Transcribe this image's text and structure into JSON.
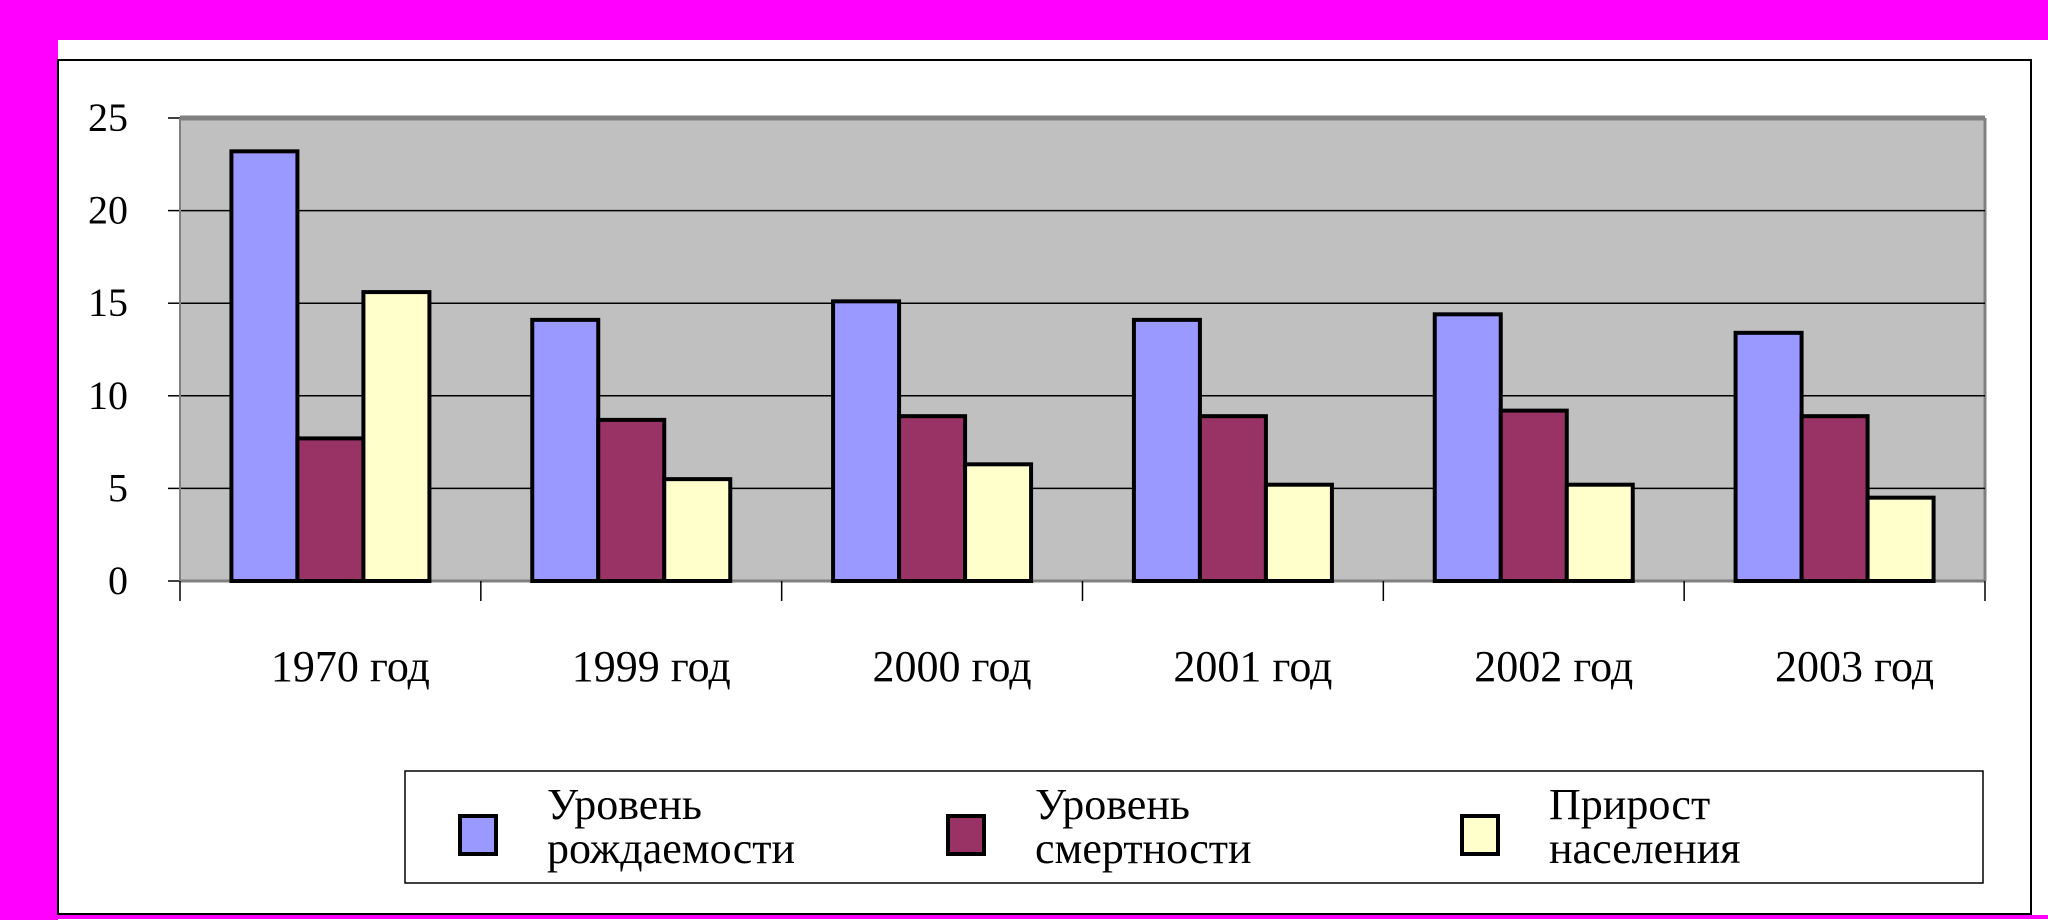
{
  "chart_data": {
    "type": "bar",
    "title": "",
    "xlabel": "",
    "ylabel": "",
    "ylim": [
      0,
      25
    ],
    "yticks": [
      "0",
      "5",
      "10",
      "15",
      "20",
      "25"
    ],
    "grid": true,
    "legend_position": "bottom",
    "categories": [
      "1970 год",
      "1999 год",
      "2000 год",
      "2001 год",
      "2002 год",
      "2003 год"
    ],
    "series": [
      {
        "name": "Уровень рождаемости",
        "name_lines": [
          "Уровень",
          "рождаемости"
        ],
        "color": "#9999FF",
        "values": [
          23.2,
          14.1,
          15.1,
          14.1,
          14.4,
          13.4
        ]
      },
      {
        "name": "Уровень смертности",
        "name_lines": [
          "Уровень",
          "смертности"
        ],
        "color": "#993366",
        "values": [
          7.7,
          8.7,
          8.9,
          8.9,
          9.2,
          8.9
        ]
      },
      {
        "name": "Прирост населения",
        "name_lines": [
          "Прирост",
          "населения"
        ],
        "color": "#FFFFCC",
        "values": [
          15.6,
          5.5,
          6.3,
          5.2,
          5.2,
          4.5
        ]
      }
    ]
  },
  "colors": {
    "frame": "#FF00FF",
    "plot_bg": "#C0C0C0"
  }
}
